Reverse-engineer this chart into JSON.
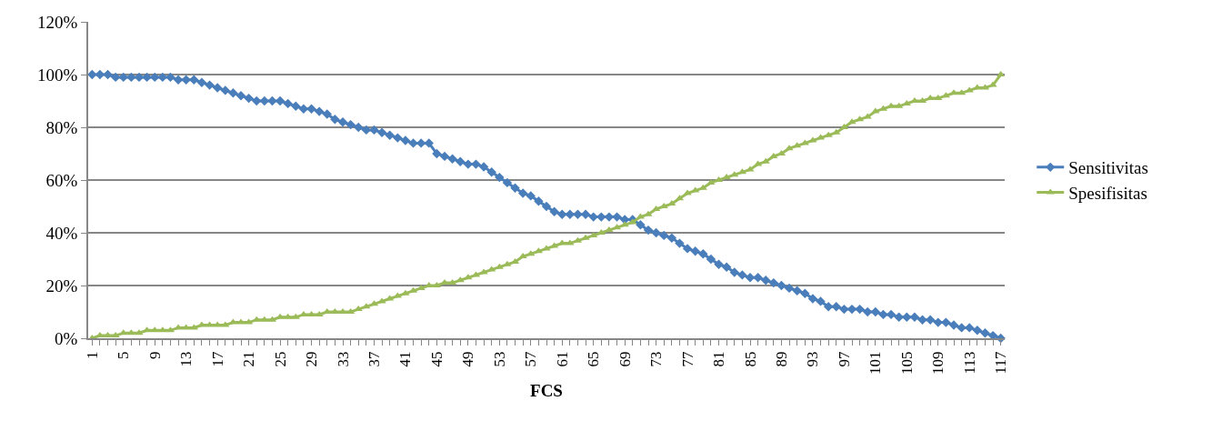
{
  "chart_data": {
    "type": "line",
    "xlabel": "FCS",
    "categories": [
      "1",
      null,
      null,
      null,
      "5",
      null,
      null,
      null,
      "9",
      null,
      null,
      null,
      "13",
      null,
      null,
      null,
      "17",
      null,
      null,
      null,
      "21",
      null,
      null,
      null,
      "25",
      null,
      null,
      null,
      "29",
      null,
      null,
      null,
      "33",
      null,
      null,
      null,
      "37",
      null,
      null,
      null,
      "41",
      null,
      null,
      null,
      "45",
      null,
      null,
      null,
      "49",
      null,
      null,
      null,
      "53",
      null,
      null,
      null,
      "57",
      null,
      null,
      null,
      "61",
      null,
      null,
      null,
      "65",
      null,
      null,
      null,
      "69",
      null,
      null,
      null,
      "73",
      null,
      null,
      null,
      "77",
      null,
      null,
      null,
      "81",
      null,
      null,
      null,
      "85",
      null,
      null,
      null,
      "89",
      null,
      null,
      null,
      "93",
      null,
      null,
      null,
      "97",
      null,
      null,
      null,
      "101",
      null,
      null,
      null,
      "105",
      null,
      null,
      null,
      "109",
      null,
      null,
      null,
      "113",
      null,
      null,
      null,
      "117"
    ],
    "series": [
      {
        "name": "Sensitivitas",
        "color": "#4a7ebb",
        "marker": "diamond",
        "values": [
          100,
          100,
          100,
          99,
          99,
          99,
          99,
          99,
          99,
          99,
          99,
          98,
          98,
          98,
          97,
          96,
          95,
          94,
          93,
          92,
          91,
          90,
          90,
          90,
          90,
          89,
          88,
          87,
          87,
          86,
          85,
          83,
          82,
          81,
          80,
          79,
          79,
          78,
          77,
          76,
          75,
          74,
          74,
          74,
          70,
          69,
          68,
          67,
          66,
          66,
          65,
          63,
          61,
          59,
          57,
          55,
          54,
          52,
          50,
          48,
          47,
          47,
          47,
          47,
          46,
          46,
          46,
          46,
          45,
          45,
          43,
          41,
          40,
          39,
          38,
          36,
          34,
          33,
          32,
          30,
          28,
          27,
          25,
          24,
          23,
          23,
          22,
          21,
          20,
          19,
          18,
          17,
          15,
          14,
          12,
          12,
          11,
          11,
          11,
          10,
          10,
          9,
          9,
          8,
          8,
          8,
          7,
          7,
          6,
          6,
          5,
          4,
          4,
          3,
          2,
          1,
          0
        ]
      },
      {
        "name": "Spesifisitas",
        "color": "#9bbb59",
        "marker": "triangle",
        "values": [
          0,
          1,
          1,
          1,
          2,
          2,
          2,
          3,
          3,
          3,
          3,
          4,
          4,
          4,
          5,
          5,
          5,
          5,
          6,
          6,
          6,
          7,
          7,
          7,
          8,
          8,
          8,
          9,
          9,
          9,
          10,
          10,
          10,
          10,
          11,
          12,
          13,
          14,
          15,
          16,
          17,
          18,
          19,
          20,
          20,
          21,
          21,
          22,
          23,
          24,
          25,
          26,
          27,
          28,
          29,
          31,
          32,
          33,
          34,
          35,
          36,
          36,
          37,
          38,
          39,
          40,
          41,
          42,
          43,
          44,
          46,
          47,
          49,
          50,
          51,
          53,
          55,
          56,
          57,
          59,
          60,
          61,
          62,
          63,
          64,
          66,
          67,
          69,
          70,
          72,
          73,
          74,
          75,
          76,
          77,
          78,
          80,
          82,
          83,
          84,
          86,
          87,
          88,
          88,
          89,
          90,
          90,
          91,
          91,
          92,
          93,
          93,
          94,
          95,
          95,
          96,
          100
        ]
      }
    ],
    "ylim": [
      0,
      120
    ],
    "yticks": [
      {
        "value": 0,
        "label": "0%"
      },
      {
        "value": 20,
        "label": "20%"
      },
      {
        "value": 40,
        "label": "40%"
      },
      {
        "value": 60,
        "label": "60%"
      },
      {
        "value": 80,
        "label": "80%"
      },
      {
        "value": 100,
        "label": "100%"
      },
      {
        "value": 120,
        "label": "120%"
      }
    ],
    "grid": "y",
    "legend": "right",
    "line_style": "solid"
  }
}
